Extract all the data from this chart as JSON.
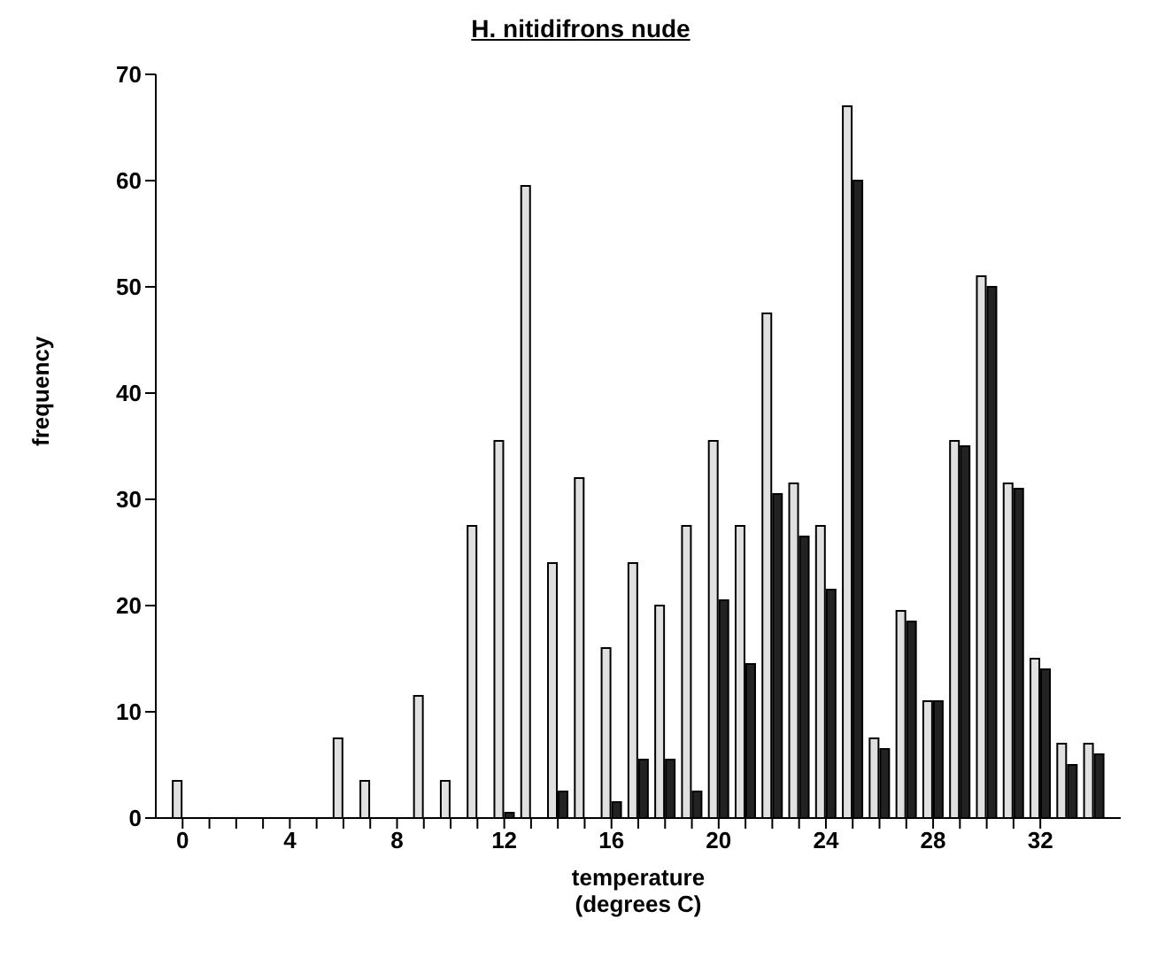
{
  "chart_data": {
    "type": "bar",
    "title": "H. nitidifrons nude",
    "xlabel": "temperature\n(degrees C)",
    "ylabel": "frequency",
    "x": [
      0,
      1,
      2,
      3,
      4,
      5,
      6,
      7,
      8,
      9,
      10,
      11,
      12,
      13,
      14,
      15,
      16,
      17,
      18,
      19,
      20,
      21,
      22,
      23,
      24,
      25,
      26,
      27,
      28,
      29,
      30,
      31,
      32,
      33,
      34
    ],
    "series": [
      {
        "color": "#e0e0e0",
        "values": [
          3.5,
          null,
          null,
          null,
          null,
          null,
          7.5,
          3.5,
          null,
          11.5,
          3.5,
          27.5,
          35.5,
          59.5,
          24,
          32,
          16,
          24,
          20,
          27.5,
          35.5,
          27.5,
          47.5,
          31.5,
          27.5,
          67,
          7.5,
          19.5,
          11,
          35.5,
          51,
          31.5,
          15,
          7,
          7
        ]
      },
      {
        "color": "#222222",
        "values": [
          null,
          null,
          null,
          null,
          null,
          null,
          null,
          null,
          null,
          null,
          null,
          null,
          0.5,
          null,
          2.5,
          null,
          1.5,
          5.5,
          5.5,
          2.5,
          20.5,
          14.5,
          30.5,
          26.5,
          21.5,
          60,
          6.5,
          18.5,
          11,
          35,
          50,
          31,
          14,
          5,
          6
        ]
      }
    ],
    "xlim": [
      -1,
      35
    ],
    "xticks": [
      0,
      {
        "value": 1,
        "label": null
      },
      {
        "value": 2,
        "label": null
      },
      {
        "value": 3,
        "label": null
      },
      4,
      {
        "value": 5,
        "label": null
      },
      {
        "value": 6,
        "label": null
      },
      {
        "value": 7,
        "label": null
      },
      8,
      {
        "value": 9,
        "label": null
      },
      {
        "value": 10,
        "label": null
      },
      {
        "value": 11,
        "label": null
      },
      12,
      {
        "value": 13,
        "label": null
      },
      {
        "value": 14,
        "label": null
      },
      {
        "value": 15,
        "label": null
      },
      16,
      {
        "value": 17,
        "label": null
      },
      {
        "value": 18,
        "label": null
      },
      {
        "value": 19,
        "label": null
      },
      20,
      {
        "value": 21,
        "label": null
      },
      {
        "value": 22,
        "label": null
      },
      {
        "value": 23,
        "label": null
      },
      24,
      {
        "value": 25,
        "label": null
      },
      {
        "value": 26,
        "label": null
      },
      {
        "value": 27,
        "label": null
      },
      28,
      {
        "value": 29,
        "label": null
      },
      {
        "value": 30,
        "label": null
      },
      {
        "value": 31,
        "label": null
      },
      32
    ],
    "ylim": [
      0,
      70
    ],
    "yticks": [
      0,
      10,
      20,
      30,
      40,
      50,
      60,
      70
    ],
    "grid": false,
    "legend": false
  }
}
